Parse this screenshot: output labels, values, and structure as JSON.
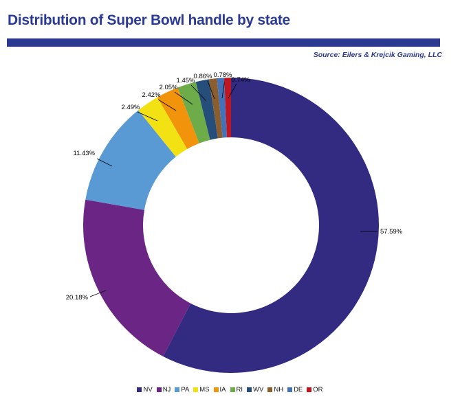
{
  "header": {
    "title": "Distribution of Super Bowl handle by state",
    "source": "Source: Eilers & Krejcik Gaming, LLC"
  },
  "style_colors": {
    "title_color": "#2b3a97",
    "divider_color": "#2b3990",
    "source_color": "#2b3990",
    "label_color": "#000000"
  },
  "chart_data": {
    "type": "pie",
    "subtype": "donut",
    "title": "Distribution of Super Bowl handle by state",
    "legend_position": "bottom",
    "value_unit": "percent",
    "series": [
      {
        "name": "NV",
        "value": 57.59,
        "label": "57.59%",
        "color": "#332a82"
      },
      {
        "name": "NJ",
        "value": 20.18,
        "label": "20.18%",
        "color": "#6b2584"
      },
      {
        "name": "PA",
        "value": 11.43,
        "label": "11.43%",
        "color": "#5a9ad4"
      },
      {
        "name": "MS",
        "value": 2.49,
        "label": "2.49%",
        "color": "#f3e213"
      },
      {
        "name": "IA",
        "value": 2.42,
        "label": "2.42%",
        "color": "#f1930b"
      },
      {
        "name": "RI",
        "value": 2.05,
        "label": "2.05%",
        "color": "#6eac49"
      },
      {
        "name": "WV",
        "value": 1.45,
        "label": "1.45%",
        "color": "#254e7b"
      },
      {
        "name": "NH",
        "value": 0.86,
        "label": "0.86%",
        "color": "#8b5e2f"
      },
      {
        "name": "DE",
        "value": 0.78,
        "label": "0.78%",
        "color": "#4472b8"
      },
      {
        "name": "OR",
        "value": 0.74,
        "label": "0.74%",
        "color": "#be1622"
      }
    ]
  }
}
